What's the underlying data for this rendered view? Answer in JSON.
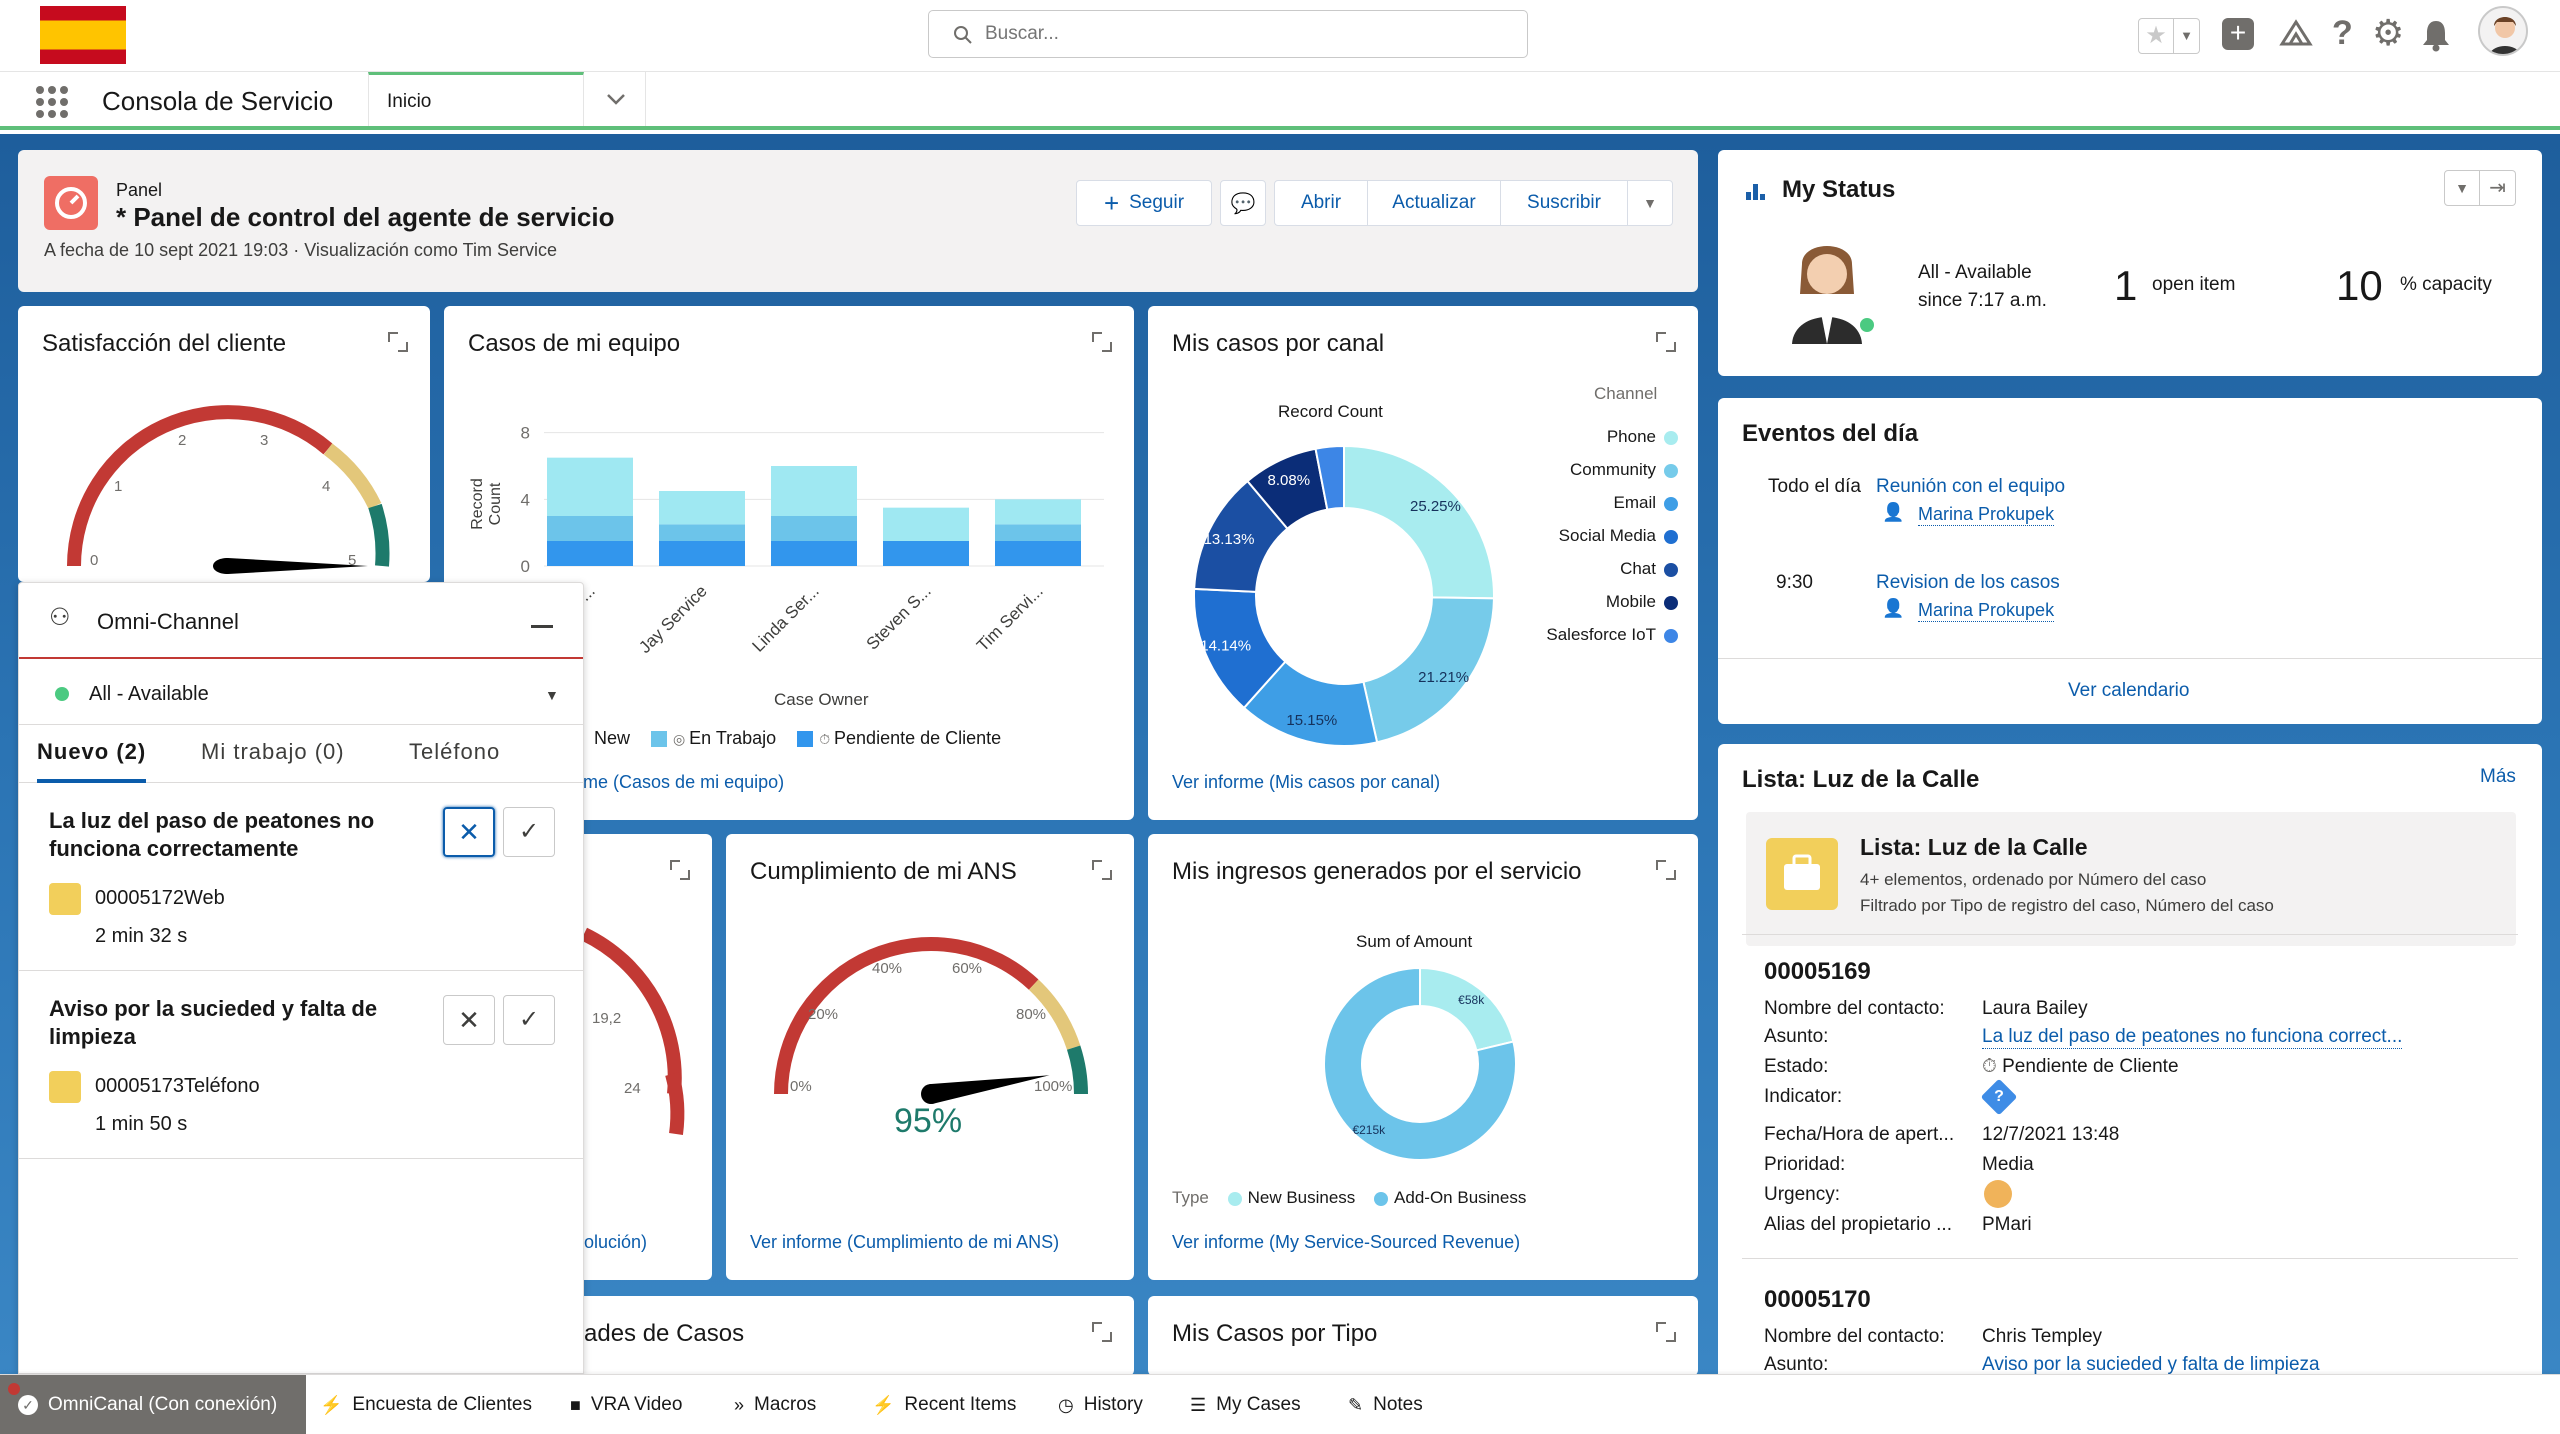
{
  "header": {
    "search_placeholder": "Buscar...",
    "icons": [
      "favorites-star-icon",
      "favorites-dropdown-icon",
      "global-add-icon",
      "trailhead-icon",
      "help-icon",
      "setup-gear-icon",
      "notifications-bell-icon",
      "user-avatar"
    ]
  },
  "nav": {
    "app_name": "Consola de Servicio",
    "tab": "Inicio"
  },
  "dashboard": {
    "label": "Panel",
    "title": "* Panel de control del agente de servicio",
    "subtitle": "A fecha de 10 sept 2021 19:03 · Visualización como Tim Service",
    "buttons": {
      "follow": "Seguir",
      "open": "Abrir",
      "refresh": "Actualizar",
      "subscribe": "Suscribir"
    }
  },
  "satisfaccion": {
    "title": "Satisfacción del cliente",
    "ticks": [
      "0",
      "1",
      "2",
      "3",
      "4",
      "5"
    ]
  },
  "casos_equipo": {
    "title": "Casos de mi equipo",
    "link": "Ver informe (Casos de mi equipo)",
    "legend": [
      "New",
      "En Trabajo",
      "Pendiente de Cliente"
    ]
  },
  "mis_casos_canal": {
    "title": "Mis casos por canal",
    "link": "Ver informe (Mis casos por canal)"
  },
  "ans": {
    "title": "Cumplimiento de mi ANS",
    "ticks": [
      "0%",
      "20%",
      "40%",
      "60%",
      "80%",
      "100%"
    ],
    "value_label": "95%",
    "value": 95,
    "link": "Ver informe (Cumplimiento de mi ANS)"
  },
  "resolucion": {
    "title_fragment": "n",
    "ticks": [
      "19,2",
      "24"
    ],
    "link_fragment": "olución)"
  },
  "ingresos": {
    "title": "Mis ingresos generados por el servicio",
    "link": "Ver informe (My Service-Sourced Revenue)"
  },
  "prioridades": {
    "title_fragment": "ades de Casos"
  },
  "casos_tipo": {
    "title": "Mis Casos por Tipo"
  },
  "chart_data": [
    {
      "type": "bar",
      "title": "Casos de mi equipo",
      "xlabel": "Case Owner",
      "ylabel": "Record Count",
      "categories": [
        "a S...",
        "Jay Service",
        "Linda Ser...",
        "Steven S...",
        "Tim Servi..."
      ],
      "series": [
        {
          "name": "New",
          "values": [
            3.5,
            2,
            3,
            2,
            1.5
          ]
        },
        {
          "name": "En Trabajo",
          "values": [
            1.5,
            1,
            1.5,
            0,
            1
          ]
        },
        {
          "name": "Pendiente de Cliente",
          "values": [
            1.5,
            1.5,
            1.5,
            1.5,
            1.5
          ]
        }
      ],
      "yticks": [
        "0",
        "4",
        "8"
      ],
      "ylim": [
        0,
        9
      ],
      "colors": [
        "#9fe8f2",
        "#6cc4ea",
        "#3296ed"
      ]
    },
    {
      "type": "pie",
      "title": "Mis casos por canal",
      "series_title": "Record Count",
      "legend_title": "Channel",
      "categories": [
        "Phone",
        "Community",
        "Email",
        "Social Media",
        "Chat",
        "Mobile",
        "Salesforce IoT"
      ],
      "values": [
        25.25,
        21.21,
        15.15,
        14.14,
        13.13,
        8.08,
        3.04
      ],
      "labels": [
        "25.25%",
        "21.21%",
        "15.15%",
        "14.14%",
        "13.13%",
        "8.08%",
        ""
      ],
      "colors": [
        "#a8ecef",
        "#76cbea",
        "#3e9ee6",
        "#1f6fd1",
        "#1b4fa3",
        "#0b2d78",
        "#3d86e6"
      ]
    },
    {
      "type": "pie",
      "title": "Mis ingresos generados por el servicio",
      "series_title": "Sum of Amount",
      "legend_title": "Type",
      "categories": [
        "New Business",
        "Add-On Business"
      ],
      "values": [
        58,
        215
      ],
      "labels": [
        "€58k",
        "€215k"
      ],
      "colors": [
        "#a8ecef",
        "#6cc4ea"
      ]
    }
  ],
  "omni": {
    "title": "Omni-Channel",
    "status": "All - Available",
    "tabs": [
      "Nuevo (2)",
      "Mi trabajo (0)",
      "Teléfono"
    ],
    "items": [
      {
        "subject": "La luz del paso de peatones no funciona correctamente",
        "case": "00005172Web",
        "time": "2 min 32 s"
      },
      {
        "subject": "Aviso por la sucieded y falta de limpieza",
        "case": "00005173Teléfono",
        "time": "1 min 50 s"
      }
    ]
  },
  "my_status": {
    "title": "My Status",
    "status": "All - Available",
    "since": "since 7:17 a.m.",
    "open_count": "1",
    "open_label": "open item",
    "capacity": "10",
    "capacity_label": "% capacity"
  },
  "eventos": {
    "title": "Eventos del día",
    "items": [
      {
        "time": "Todo el día",
        "title": "Reunión con el equipo",
        "person": "Marina Prokupek"
      },
      {
        "time": "9:30",
        "title": "Revision de los casos",
        "person": "Marina Prokupek"
      }
    ],
    "link": "Ver calendario"
  },
  "lista": {
    "title": "Lista: Luz de la Calle",
    "more": "Más",
    "box_title": "Lista: Luz de la Calle",
    "box_line1": "4+ elementos, ordenado por Número del caso",
    "box_line2": "Filtrado por Tipo de registro del caso, Número del caso",
    "records": [
      {
        "number": "00005169",
        "fields": [
          {
            "label": "Nombre del contacto:",
            "value": "Laura Bailey"
          },
          {
            "label": "Asunto:",
            "value": "La luz del paso de peatones no funciona correct..."
          },
          {
            "label": "Estado:",
            "value": "Pendiente de Cliente"
          },
          {
            "label": "Indicator:",
            "value": ""
          },
          {
            "label": "Fecha/Hora de apert...",
            "value": "12/7/2021 13:48"
          },
          {
            "label": "Prioridad:",
            "value": "Media"
          },
          {
            "label": "Urgency:",
            "value": ""
          },
          {
            "label": "Alias del propietario ...",
            "value": "PMari"
          }
        ]
      },
      {
        "number": "00005170",
        "fields": [
          {
            "label": "Nombre del contacto:",
            "value": "Chris Templey"
          },
          {
            "label": "Asunto:",
            "value": "Aviso por la sucieded y falta de limpieza"
          }
        ]
      }
    ]
  },
  "utility_bar": {
    "items": [
      "OmniCanal (Con conexión)",
      "Encuesta de Clientes",
      "VRA Video",
      "Macros",
      "Recent Items",
      "History",
      "My Cases",
      "Notes"
    ]
  }
}
